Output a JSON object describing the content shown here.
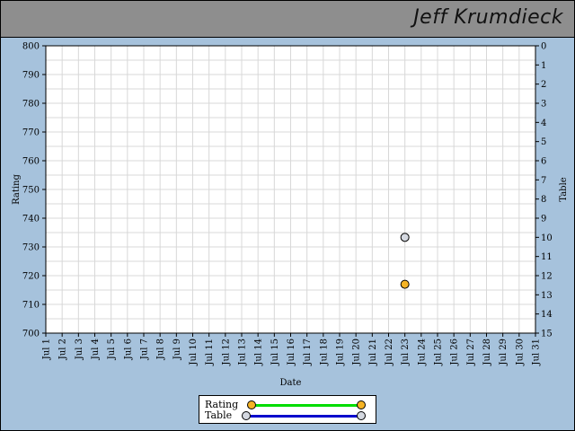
{
  "header": {
    "player_name": "Jeff Krumdieck"
  },
  "legend": {
    "rating_label": "Rating",
    "table_label": "Table"
  },
  "colors": {
    "header_bg": "#8e8e8e",
    "page_bg": "#a6c2dc",
    "rating_line": "#00dd00",
    "rating_marker": "#f5b324",
    "table_line": "#0000cc",
    "table_marker": "#d4d8e0",
    "grid": "#d8d8d8"
  },
  "chart_data": {
    "type": "scatter",
    "xlabel": "Date",
    "ylabel": "Rating",
    "y2label": "Table",
    "x_categories": [
      "Jul 1",
      "Jul 2",
      "Jul 3",
      "Jul 4",
      "Jul 5",
      "Jul 6",
      "Jul 7",
      "Jul 8",
      "Jul 9",
      "Jul 10",
      "Jul 11",
      "Jul 12",
      "Jul 13",
      "Jul 14",
      "Jul 15",
      "Jul 16",
      "Jul 17",
      "Jul 18",
      "Jul 19",
      "Jul 20",
      "Jul 21",
      "Jul 22",
      "Jul 23",
      "Jul 24",
      "Jul 25",
      "Jul 26",
      "Jul 27",
      "Jul 28",
      "Jul 29",
      "Jul 30",
      "Jul 31"
    ],
    "ylim": [
      700,
      800
    ],
    "yticks": [
      700,
      710,
      720,
      730,
      740,
      750,
      760,
      770,
      780,
      790,
      800
    ],
    "y2lim": [
      0,
      15
    ],
    "y2_inverted": true,
    "y2ticks": [
      0,
      1,
      2,
      3,
      4,
      5,
      6,
      7,
      8,
      9,
      10,
      11,
      12,
      13,
      14,
      15
    ],
    "grid": true,
    "legend_position": "bottom",
    "series": [
      {
        "name": "Rating",
        "axis": "left",
        "points": [
          {
            "x": "Jul 23",
            "y": 717
          }
        ]
      },
      {
        "name": "Table",
        "axis": "right",
        "points": [
          {
            "x": "Jul 23",
            "y": 10
          }
        ]
      }
    ]
  }
}
